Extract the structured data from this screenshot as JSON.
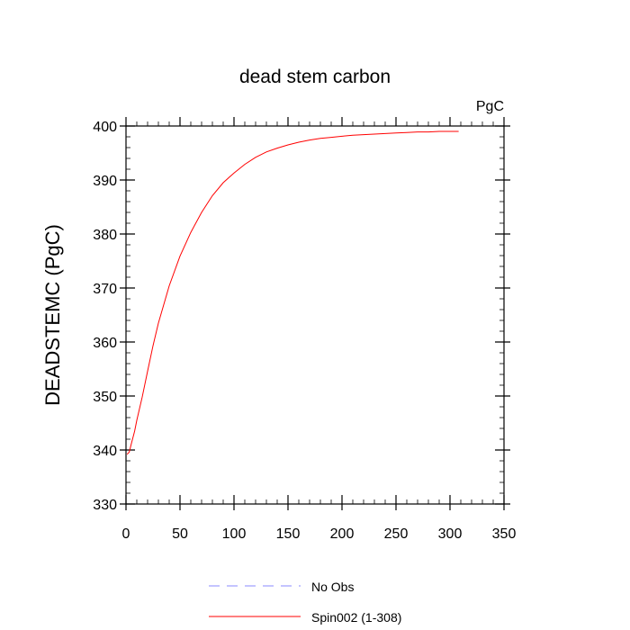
{
  "chart_data": {
    "type": "line",
    "title": "dead stem carbon",
    "units_label": "PgC",
    "ylabel": "DEADSTEMC  (PgC)",
    "xlabel": "",
    "xlim": [
      0,
      350
    ],
    "ylim": [
      330,
      400
    ],
    "x_ticks": [
      0,
      50,
      100,
      150,
      200,
      250,
      300,
      350
    ],
    "y_ticks": [
      330,
      340,
      350,
      360,
      370,
      380,
      390,
      400
    ],
    "grid": false,
    "legend_position": "bottom",
    "colors": {
      "obs": "#8888ff",
      "spin": "#ff0000"
    },
    "series": [
      {
        "name": "No Obs",
        "style": "dashed",
        "color": "#8888ff",
        "x": [],
        "values": []
      },
      {
        "name": "Spin002 (1-308)",
        "style": "solid",
        "color": "#ff0000",
        "x": [
          1,
          3,
          5,
          8,
          10,
          15,
          20,
          25,
          30,
          40,
          50,
          60,
          70,
          80,
          90,
          100,
          110,
          120,
          130,
          140,
          150,
          160,
          170,
          180,
          190,
          200,
          210,
          220,
          230,
          240,
          250,
          260,
          270,
          280,
          290,
          300,
          308
        ],
        "values": [
          339.2,
          339.6,
          341.2,
          343.5,
          345.5,
          349.8,
          354.6,
          359.3,
          363.5,
          370.4,
          375.9,
          380.3,
          384.0,
          387.1,
          389.5,
          391.3,
          392.9,
          394.2,
          395.2,
          395.9,
          396.5,
          397.0,
          397.4,
          397.7,
          397.9,
          398.1,
          398.3,
          398.4,
          398.5,
          398.6,
          398.7,
          398.8,
          398.9,
          398.9,
          399.0,
          399.0,
          399.0
        ]
      }
    ]
  }
}
